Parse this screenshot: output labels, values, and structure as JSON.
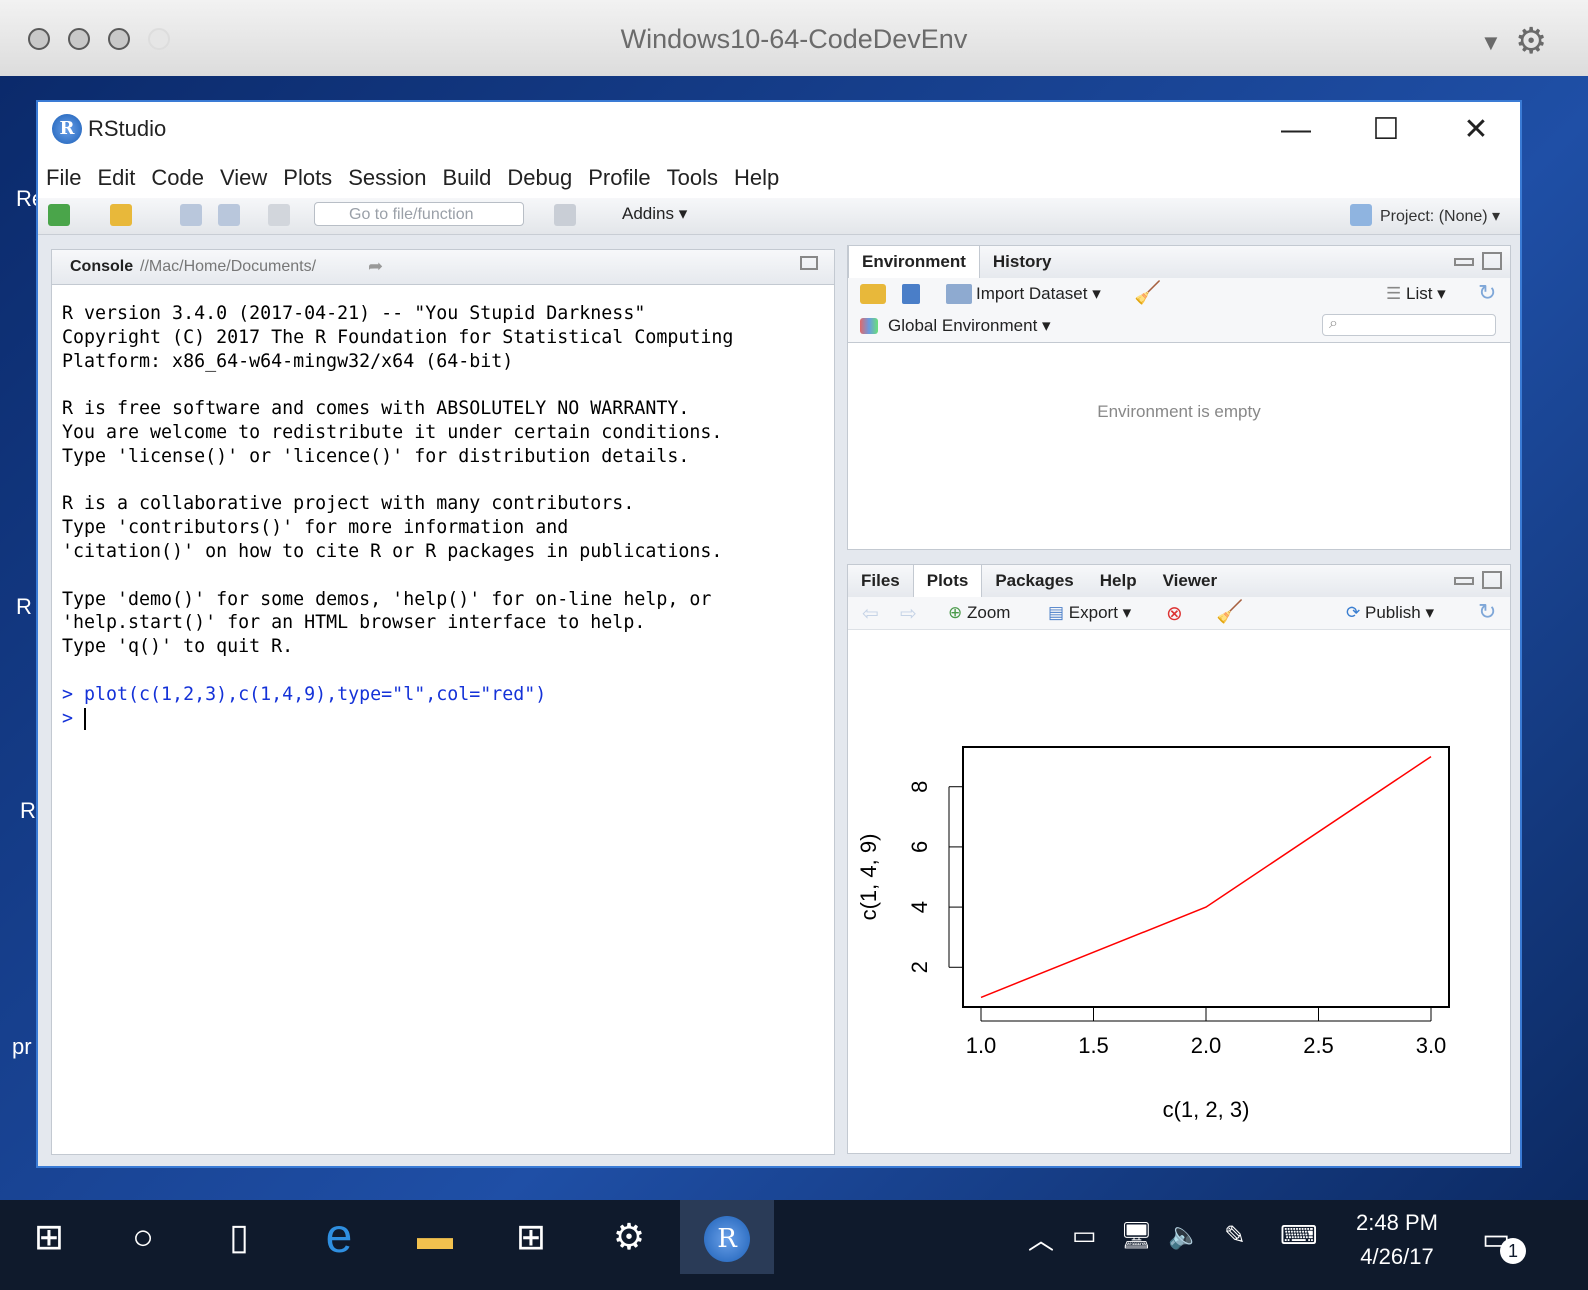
{
  "vm": {
    "title": "Windows10-64-CodeDevEnv"
  },
  "desktop": {
    "side_labels": [
      "Re",
      "R",
      "R",
      "pr"
    ]
  },
  "rstudio": {
    "title": "RStudio",
    "logo_letter": "R",
    "menu": [
      "File",
      "Edit",
      "Code",
      "View",
      "Plots",
      "Session",
      "Build",
      "Debug",
      "Profile",
      "Tools",
      "Help"
    ],
    "toolbar": {
      "goto_placeholder": "Go to file/function",
      "addins": "Addins",
      "project": "Project: (None)"
    },
    "console": {
      "tab": "Console",
      "path": "//Mac/Home/Documents/",
      "lines": [
        "R version 3.4.0 (2017-04-21) -- \"You Stupid Darkness\"",
        "Copyright (C) 2017 The R Foundation for Statistical Computing",
        "Platform: x86_64-w64-mingw32/x64 (64-bit)",
        "",
        "R is free software and comes with ABSOLUTELY NO WARRANTY.",
        "You are welcome to redistribute it under certain conditions.",
        "Type 'license()' or 'licence()' for distribution details.",
        "",
        "R is a collaborative project with many contributors.",
        "Type 'contributors()' for more information and",
        "'citation()' on how to cite R or R packages in publications.",
        "",
        "Type 'demo()' for some demos, 'help()' for on-line help, or",
        "'help.start()' for an HTML browser interface to help.",
        "Type 'q()' to quit R.",
        ""
      ],
      "command": "> plot(c(1,2,3),c(1,4,9),type=\"l\",col=\"red\")",
      "prompt": "> "
    },
    "env": {
      "tabs": [
        "Environment",
        "History"
      ],
      "import": "Import Dataset",
      "list": "List",
      "global": "Global Environment",
      "empty": "Environment is empty"
    },
    "plots": {
      "tabs": [
        "Files",
        "Plots",
        "Packages",
        "Help",
        "Viewer"
      ],
      "zoom": "Zoom",
      "export": "Export",
      "publish": "Publish"
    }
  },
  "chart_data": {
    "type": "line",
    "x": [
      1,
      2,
      3
    ],
    "y": [
      1,
      4,
      9
    ],
    "color": "#ff0000",
    "xlabel": "c(1, 2, 3)",
    "ylabel": "c(1, 4, 9)",
    "xticks": [
      "1.0",
      "1.5",
      "2.0",
      "2.5",
      "3.0"
    ],
    "yticks": [
      "2",
      "4",
      "6",
      "8"
    ],
    "xlim": [
      0.92,
      3.08
    ],
    "ylim": [
      0.68,
      9.32
    ]
  },
  "taskbar": {
    "time": "2:48 PM",
    "date": "4/26/17",
    "notif_count": "1"
  }
}
